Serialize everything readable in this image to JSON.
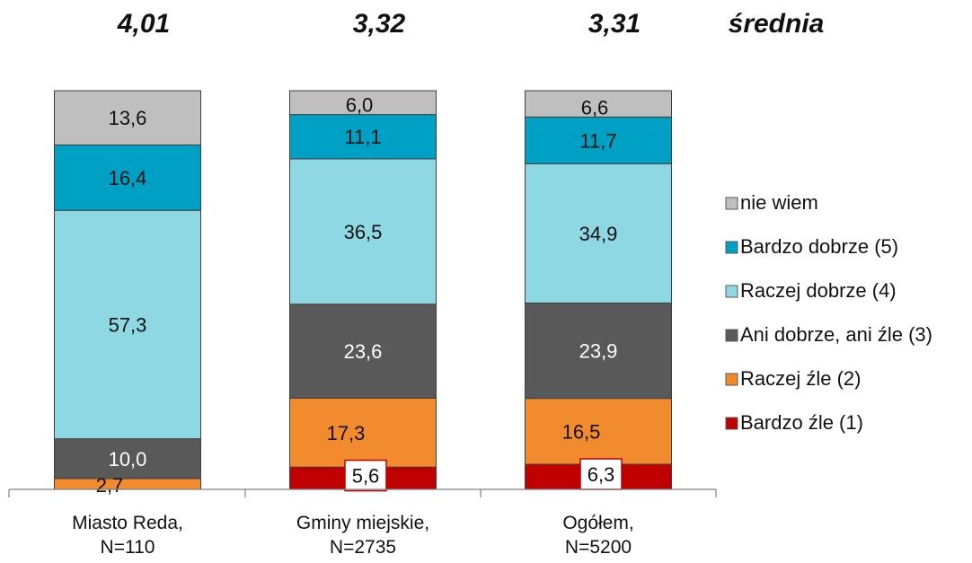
{
  "chart_data": {
    "type": "bar",
    "stacked": true,
    "percent": true,
    "averages": [
      "4,01",
      "3,32",
      "3,31"
    ],
    "averages_label": "średnia",
    "categories": [
      [
        "Miasto Reda,",
        "N=110"
      ],
      [
        "Gminy miejskie,",
        "N=2735"
      ],
      [
        "Ogółem,",
        "N=5200"
      ]
    ],
    "series": [
      {
        "name": "Bardzo źle (1)",
        "color": "#c00000",
        "values": [
          0,
          5.6,
          6.3
        ],
        "labels": [
          "",
          "5,6",
          "6,3"
        ]
      },
      {
        "name": "Raczej źle (2)",
        "color": "#f28a2e",
        "values": [
          2.7,
          17.3,
          16.5
        ],
        "labels": [
          "2,7",
          "17,3",
          "16,5"
        ]
      },
      {
        "name": "Ani dobrze, ani źle (3)",
        "color": "#595959",
        "values": [
          10.0,
          23.6,
          23.9
        ],
        "labels": [
          "10,0",
          "23,6",
          "23,9"
        ]
      },
      {
        "name": "Raczej dobrze (4)",
        "color": "#8ed8e4",
        "values": [
          57.3,
          36.5,
          34.9
        ],
        "labels": [
          "57,3",
          "36,5",
          "34,9"
        ]
      },
      {
        "name": "Bardzo dobrze (5)",
        "color": "#00a0c4",
        "values": [
          16.4,
          11.1,
          11.7
        ],
        "labels": [
          "16,4",
          "11,1",
          "11,7"
        ]
      },
      {
        "name": "nie wiem",
        "color": "#bfbfbf",
        "values": [
          13.6,
          6.0,
          6.6
        ],
        "labels": [
          "13,6",
          "6,0",
          "6,6"
        ]
      }
    ],
    "legend_position": "right",
    "grid": false
  }
}
